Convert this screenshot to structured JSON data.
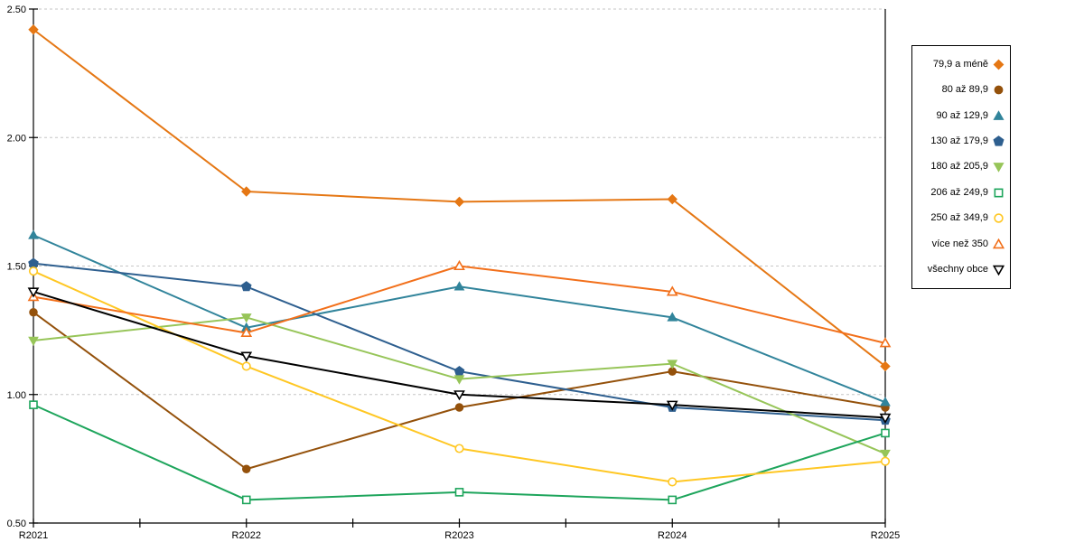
{
  "chart_data": {
    "type": "line",
    "title": "",
    "xlabel": "",
    "ylabel": "",
    "x_categories": [
      "R2021",
      "R2022",
      "R2023",
      "R2024",
      "R2025"
    ],
    "y_axis": {
      "min": 0.5,
      "max": 2.5,
      "ticks": [
        0.5,
        1.0,
        1.5,
        2.0,
        2.5
      ],
      "tick_labels": [
        "0.50",
        "1.00",
        "1.50",
        "2.00",
        "2.50"
      ]
    },
    "grid": "horizontal-dashed",
    "legend_position": "right",
    "colors": {
      "grid": "#C6C6C6",
      "axis": "#000000",
      "text": "#000000"
    },
    "series": [
      {
        "name": "79,9 a méně",
        "color": "#E57714",
        "marker": "diamond",
        "marker_filled": true,
        "values": [
          2.42,
          1.79,
          1.75,
          1.76,
          1.11
        ]
      },
      {
        "name": "80 až 89,9",
        "color": "#94510B",
        "marker": "circle",
        "marker_filled": true,
        "values": [
          1.32,
          0.71,
          0.95,
          1.09,
          0.95
        ]
      },
      {
        "name": "90 až 129,9",
        "color": "#31849B",
        "marker": "triangle-up",
        "marker_filled": true,
        "values": [
          1.62,
          1.26,
          1.42,
          1.3,
          0.97
        ]
      },
      {
        "name": "130 až 179,9",
        "color": "#2E5F8F",
        "marker": "pentagon",
        "marker_filled": true,
        "values": [
          1.51,
          1.42,
          1.09,
          0.95,
          0.9
        ]
      },
      {
        "name": "180 až 205,9",
        "color": "#97C559",
        "marker": "triangle-down",
        "marker_filled": true,
        "values": [
          1.21,
          1.3,
          1.06,
          1.12,
          0.77
        ]
      },
      {
        "name": "206 až 249,9",
        "color": "#1EA55C",
        "marker": "square",
        "marker_filled": false,
        "values": [
          0.96,
          0.59,
          0.62,
          0.59,
          0.85
        ]
      },
      {
        "name": "250 až 349,9",
        "color": "#FFC723",
        "marker": "circle",
        "marker_filled": false,
        "values": [
          1.48,
          1.11,
          0.79,
          0.66,
          0.74
        ]
      },
      {
        "name": "více než 350",
        "color": "#F2701B",
        "marker": "triangle-up",
        "marker_filled": false,
        "values": [
          1.38,
          1.24,
          1.5,
          1.4,
          1.2
        ]
      },
      {
        "name": "všechny obce",
        "color": "#000000",
        "marker": "triangle-down",
        "marker_filled": false,
        "values": [
          1.4,
          1.15,
          1.0,
          0.96,
          0.91
        ]
      }
    ]
  }
}
